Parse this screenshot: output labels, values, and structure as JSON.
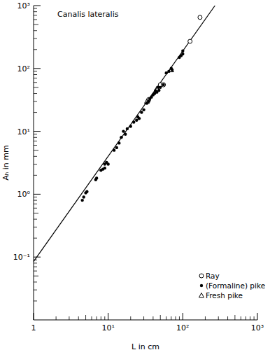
{
  "chart_data": {
    "type": "scatter",
    "title": "Canalis lateralis",
    "x_label": "L in cm",
    "y_label": "Aₕ in mm",
    "log": true,
    "grid": false,
    "legend": "lower right",
    "xlim": [
      1,
      1000
    ],
    "ylim": [
      0.01,
      1000
    ],
    "xticks": [
      1,
      {
        "value": 10,
        "label": "10¹"
      },
      {
        "value": 100,
        "label": "10²"
      },
      {
        "value": 1000,
        "label": "10³"
      }
    ],
    "yticks": [
      {
        "value": 0.1,
        "label": "10⁻¹"
      },
      {
        "value": 1,
        "label": "10⁰"
      },
      {
        "value": 10,
        "label": "10¹"
      },
      {
        "value": 100,
        "label": "10²"
      },
      {
        "value": 1000,
        "label": "10³"
      }
    ],
    "series": [
      {
        "name": "Ray",
        "type": "scatter",
        "marker": "circle_open",
        "color": "#000000",
        "x": [
          35,
          50,
          55,
          125,
          170
        ],
        "values": [
          32,
          55,
          55,
          270,
          650
        ]
      },
      {
        "name": "(Formaline) pike",
        "type": "scatter",
        "marker": "circle",
        "color": "#000000",
        "x": [
          4.5,
          4.7,
          5,
          5.2,
          6.8,
          7,
          8,
          8.5,
          9,
          9,
          9.5,
          10,
          12,
          13,
          14,
          15,
          16,
          17,
          18,
          20,
          22,
          24,
          25,
          26,
          28,
          30,
          33,
          35,
          36,
          38,
          40,
          42,
          43,
          45,
          47,
          48,
          50,
          55,
          60,
          65,
          70,
          72,
          90,
          95,
          100,
          100
        ],
        "values": [
          0.8,
          0.9,
          1.05,
          1.1,
          1.7,
          1.8,
          2.4,
          2.5,
          2.6,
          3.0,
          3.2,
          3.0,
          5,
          5.5,
          6.5,
          8,
          10,
          9,
          11,
          12,
          14,
          15,
          17,
          16,
          20,
          22,
          28,
          30,
          33,
          35,
          38,
          40,
          44,
          42,
          50,
          45,
          50,
          55,
          85,
          90,
          100,
          95,
          150,
          160,
          190,
          170
        ]
      },
      {
        "name": "Fresh pike",
        "type": "scatter",
        "marker": "triangle",
        "color": "#000000",
        "x": [
          33,
          45,
          70
        ],
        "values": [
          30,
          48,
          95
        ]
      },
      {
        "type": "line",
        "line_style": "solid",
        "color": "#000000",
        "x": [
          1,
          270
        ],
        "values": [
          0.085,
          1000
        ]
      }
    ]
  }
}
